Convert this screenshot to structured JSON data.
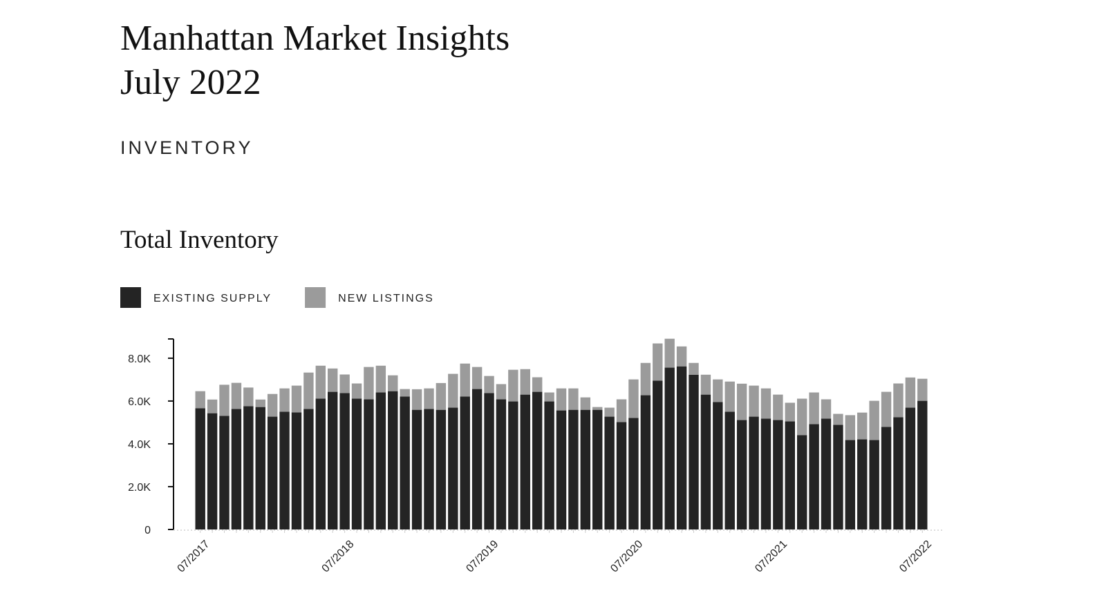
{
  "header": {
    "title": "Manhattan Market Insights",
    "subtitle": "July 2022",
    "section": "INVENTORY"
  },
  "chart_data": {
    "type": "stacked-bar",
    "title": "Total Inventory",
    "categories": [
      "07/2017",
      null,
      null,
      null,
      null,
      null,
      null,
      null,
      null,
      null,
      null,
      null,
      "07/2018",
      null,
      null,
      null,
      null,
      null,
      null,
      null,
      null,
      null,
      null,
      null,
      "07/2019",
      null,
      null,
      null,
      null,
      null,
      null,
      null,
      null,
      null,
      null,
      null,
      "07/2020",
      null,
      null,
      null,
      null,
      null,
      null,
      null,
      null,
      null,
      null,
      null,
      "07/2021",
      null,
      null,
      null,
      null,
      null,
      null,
      null,
      null,
      null,
      null,
      null,
      "07/2022"
    ],
    "series": [
      {
        "name": "EXISTING SUPPLY",
        "color": "#242424",
        "values": [
          5660,
          5430,
          5310,
          5630,
          5760,
          5720,
          5270,
          5500,
          5470,
          5630,
          6110,
          6430,
          6370,
          6110,
          6080,
          6400,
          6460,
          6210,
          5590,
          5630,
          5590,
          5690,
          6210,
          6560,
          6370,
          6080,
          5980,
          6300,
          6430,
          5980,
          5560,
          5590,
          5590,
          5590,
          5270,
          5020,
          5210,
          6270,
          6950,
          7560,
          7620,
          7230,
          6300,
          5950,
          5500,
          5110,
          5270,
          5180,
          5110,
          5050,
          4410,
          4920,
          5180,
          4890,
          4180,
          4210,
          4180,
          4790,
          5240,
          5690,
          6010
        ]
      },
      {
        "name": "NEW LISTINGS",
        "color": "#9b9b9b",
        "values": [
          800,
          640,
          1450,
          1220,
          870,
          350,
          1060,
          1090,
          1250,
          1700,
          1540,
          1090,
          870,
          710,
          1510,
          1250,
          740,
          350,
          960,
          960,
          1250,
          1580,
          1540,
          1030,
          800,
          710,
          1480,
          1190,
          680,
          420,
          1030,
          1000,
          580,
          130,
          420,
          1060,
          1800,
          1510,
          1740,
          1350,
          930,
          550,
          930,
          1060,
          1410,
          1700,
          1450,
          1410,
          1190,
          870,
          1700,
          1480,
          900,
          510,
          1160,
          1250,
          1830,
          1640,
          1580,
          1410,
          1030
        ]
      }
    ],
    "ylim": [
      0,
      8900
    ],
    "yticks": [
      0,
      {
        "value": 2000,
        "label": "2.0K"
      },
      {
        "value": 4000,
        "label": "4.0K"
      },
      {
        "value": 6000,
        "label": "6.0K"
      },
      {
        "value": 8000,
        "label": "8.0K"
      }
    ],
    "grid": false
  }
}
